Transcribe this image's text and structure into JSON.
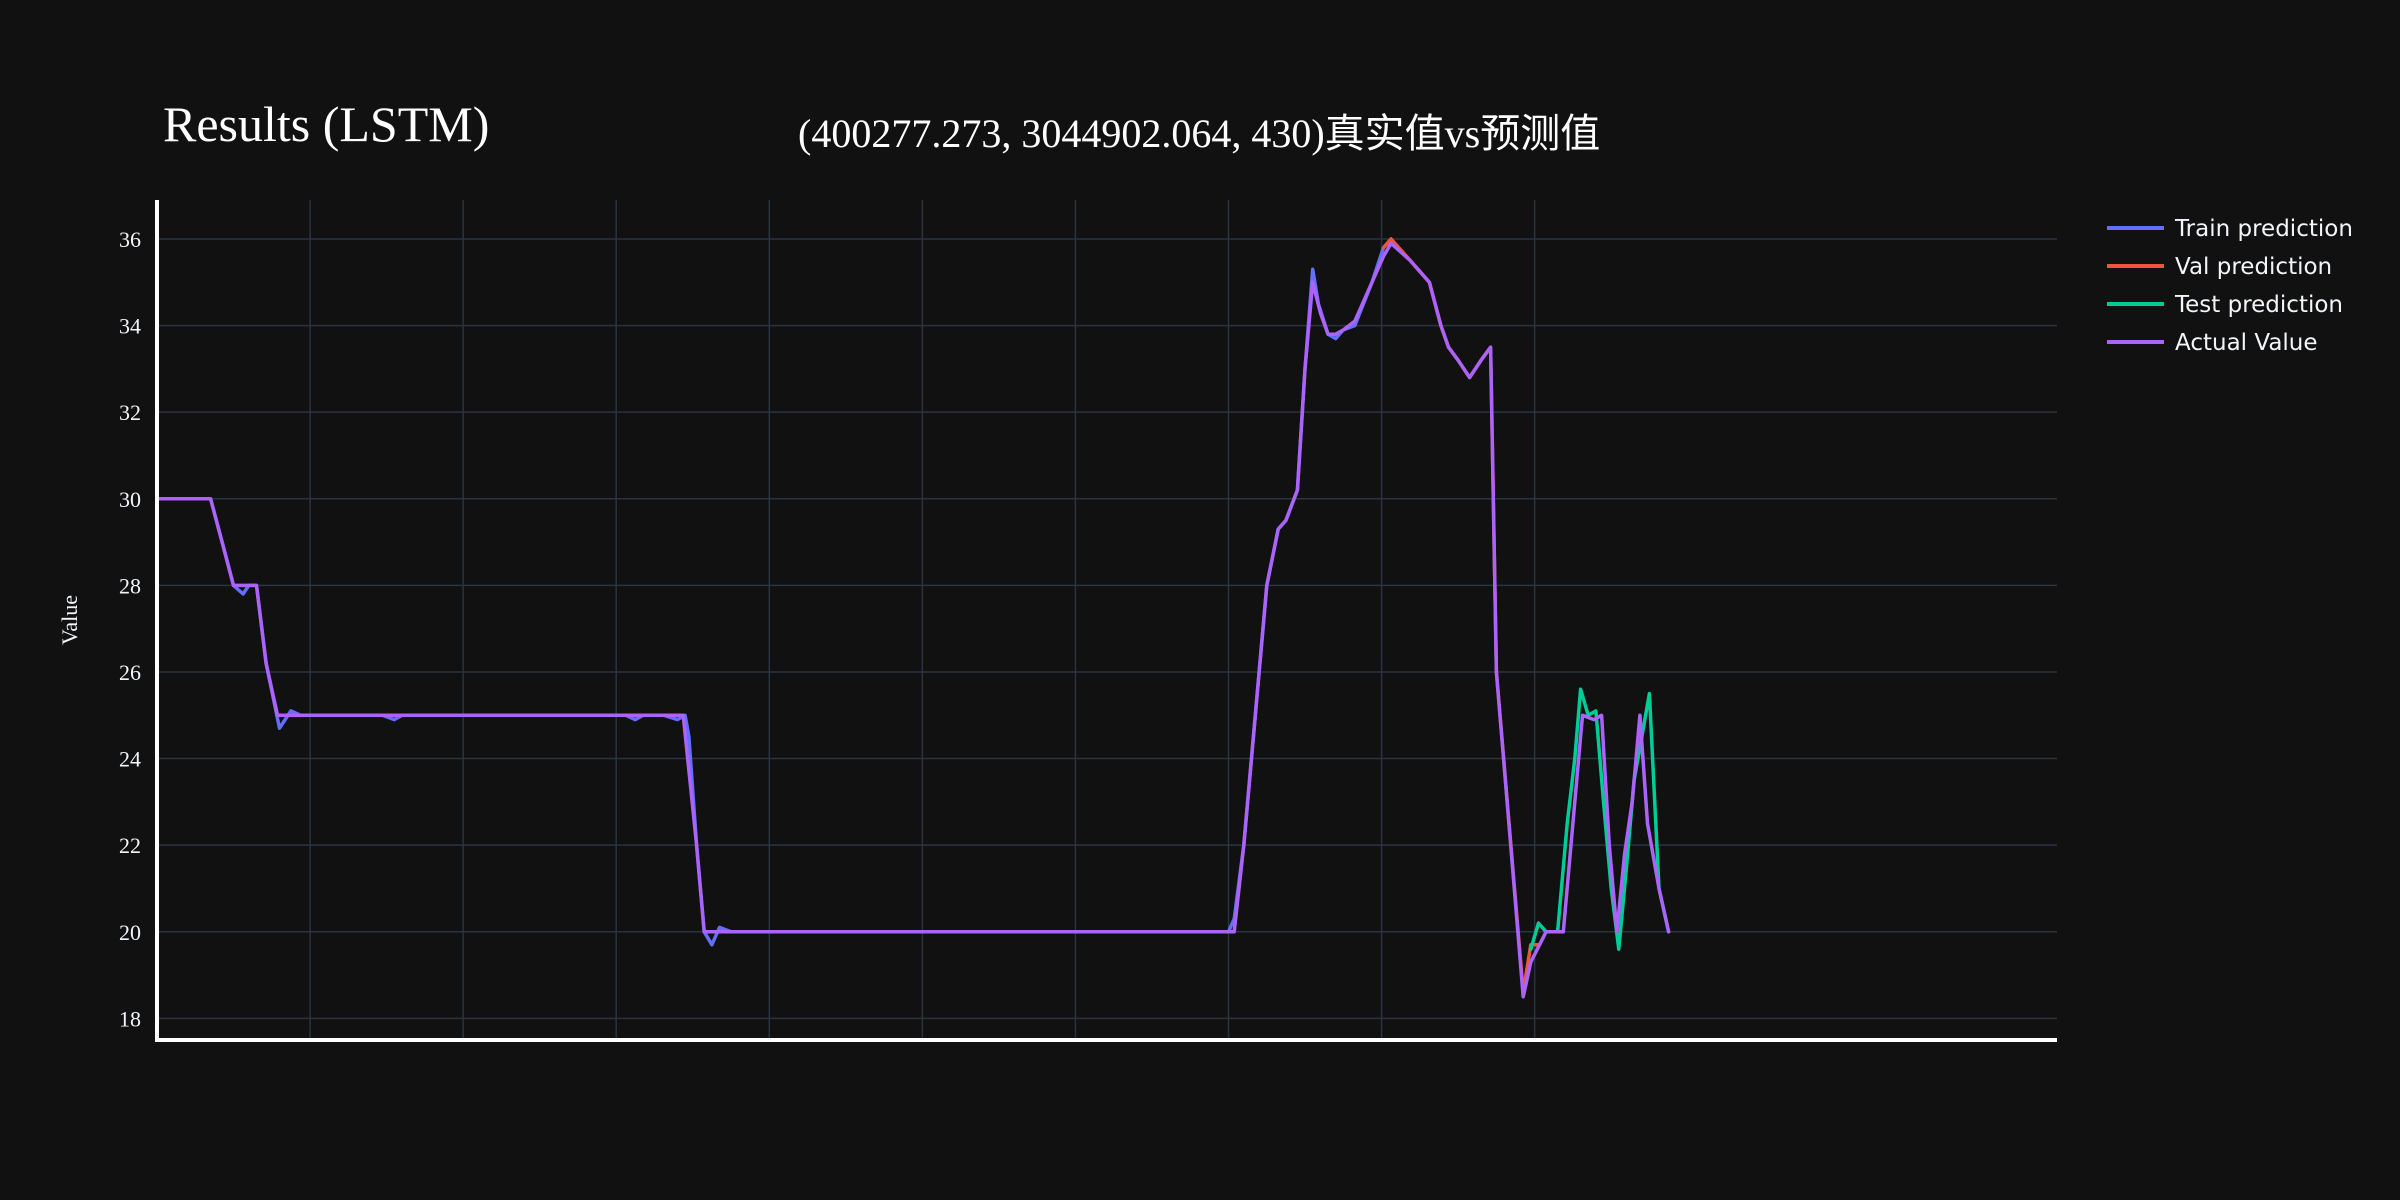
{
  "chart_data": {
    "type": "line",
    "title": "Results (LSTM)",
    "subtitle": "(400277.273, 3044902.064, 430)真实值vs预测值",
    "xlabel": "",
    "ylabel": "Value",
    "xlim": [
      0,
      993
    ],
    "ylim": [
      17.5,
      36.9
    ],
    "x_gridlines": [
      80,
      160,
      240,
      320,
      400,
      480,
      560,
      640,
      720
    ],
    "y_ticks": [
      18,
      20,
      22,
      24,
      26,
      28,
      30,
      32,
      34,
      36
    ],
    "grid": true,
    "legend_position": "top-right",
    "series": [
      {
        "name": "Train prediction",
        "color": "#636efa",
        "points": [
          [
            0,
            30
          ],
          [
            28,
            30
          ],
          [
            34,
            29
          ],
          [
            40,
            28
          ],
          [
            45,
            27.8
          ],
          [
            48,
            28
          ],
          [
            52,
            28
          ],
          [
            57,
            26.2
          ],
          [
            64,
            24.7
          ],
          [
            70,
            25.1
          ],
          [
            75,
            25
          ],
          [
            120,
            25
          ],
          [
            118,
            25
          ],
          [
            124,
            24.9
          ],
          [
            128,
            25
          ],
          [
            180,
            25
          ],
          [
            240,
            25
          ],
          [
            245,
            25
          ],
          [
            250,
            24.9
          ],
          [
            254,
            25
          ],
          [
            265,
            25
          ],
          [
            272,
            24.9
          ],
          [
            276,
            25
          ],
          [
            278,
            24.5
          ],
          [
            282,
            22
          ],
          [
            286,
            20
          ],
          [
            290,
            19.7
          ],
          [
            294,
            20.1
          ],
          [
            300,
            20
          ],
          [
            400,
            20
          ],
          [
            500,
            20
          ],
          [
            560,
            20
          ],
          [
            563,
            20.3
          ],
          [
            568,
            22
          ],
          [
            574,
            25
          ],
          [
            580,
            28
          ],
          [
            586,
            29.3
          ],
          [
            590,
            29.5
          ],
          [
            596,
            30.2
          ],
          [
            600,
            33
          ],
          [
            604,
            35.3
          ],
          [
            607,
            34.5
          ],
          [
            612,
            33.8
          ],
          [
            616,
            33.7
          ],
          [
            620,
            33.9
          ],
          [
            626,
            34
          ],
          [
            635,
            35
          ],
          [
            641,
            35.8
          ],
          [
            645,
            36
          ]
        ]
      },
      {
        "name": "Val prediction",
        "color": "#ef553b",
        "points": [
          [
            641,
            35.8
          ],
          [
            645,
            36
          ],
          [
            655,
            35.5
          ],
          [
            665,
            35
          ],
          [
            671,
            34
          ],
          [
            675,
            33.5
          ],
          [
            680,
            33.2
          ],
          [
            686,
            32.8
          ],
          [
            692,
            33.2
          ],
          [
            697,
            33.5
          ],
          [
            700,
            26
          ],
          [
            714,
            18.6
          ],
          [
            718,
            19.7
          ],
          [
            722,
            19.7
          ]
        ]
      },
      {
        "name": "Test prediction",
        "color": "#00cc96",
        "points": [
          [
            718,
            19.6
          ],
          [
            722,
            20.2
          ],
          [
            726,
            20
          ],
          [
            732,
            20
          ],
          [
            737,
            22.5
          ],
          [
            741,
            24
          ],
          [
            744,
            25.6
          ],
          [
            748,
            25
          ],
          [
            752,
            25.1
          ],
          [
            756,
            23
          ],
          [
            760,
            21
          ],
          [
            764,
            19.6
          ],
          [
            768,
            21.5
          ],
          [
            772,
            23.5
          ],
          [
            776,
            24.5
          ],
          [
            780,
            25.5
          ],
          [
            785,
            21
          ],
          [
            790,
            20
          ]
        ]
      },
      {
        "name": "Actual Value",
        "color": "#ab63fa",
        "points": [
          [
            0,
            30
          ],
          [
            28,
            30
          ],
          [
            34,
            29
          ],
          [
            40,
            28
          ],
          [
            45,
            28
          ],
          [
            52,
            28
          ],
          [
            57,
            26.2
          ],
          [
            63,
            25
          ],
          [
            120,
            25
          ],
          [
            180,
            25
          ],
          [
            240,
            25
          ],
          [
            275,
            25
          ],
          [
            282,
            22
          ],
          [
            286,
            20
          ],
          [
            560,
            20
          ],
          [
            563,
            20
          ],
          [
            568,
            22
          ],
          [
            574,
            25
          ],
          [
            580,
            28
          ],
          [
            586,
            29.3
          ],
          [
            590,
            29.5
          ],
          [
            596,
            30.2
          ],
          [
            600,
            33
          ],
          [
            604,
            35
          ],
          [
            608,
            34.3
          ],
          [
            612,
            33.8
          ],
          [
            616,
            33.8
          ],
          [
            620,
            33.9
          ],
          [
            626,
            34.1
          ],
          [
            635,
            35
          ],
          [
            641,
            35.6
          ],
          [
            645,
            35.9
          ],
          [
            655,
            35.5
          ],
          [
            665,
            35
          ],
          [
            671,
            34
          ],
          [
            675,
            33.5
          ],
          [
            680,
            33.2
          ],
          [
            686,
            32.8
          ],
          [
            692,
            33.2
          ],
          [
            697,
            33.5
          ],
          [
            700,
            26
          ],
          [
            714,
            18.5
          ],
          [
            718,
            19.3
          ],
          [
            726,
            20
          ],
          [
            735,
            20
          ],
          [
            741,
            23
          ],
          [
            745,
            25
          ],
          [
            751,
            24.9
          ],
          [
            755,
            25
          ],
          [
            759,
            22
          ],
          [
            763,
            20
          ],
          [
            767,
            21.8
          ],
          [
            771,
            23
          ],
          [
            775,
            25
          ],
          [
            779,
            22.5
          ],
          [
            785,
            21
          ],
          [
            790,
            20
          ]
        ]
      }
    ]
  }
}
